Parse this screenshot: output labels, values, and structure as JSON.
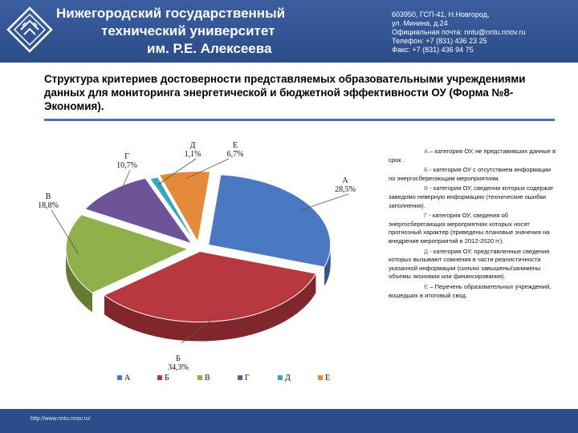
{
  "header": {
    "university": [
      "Нижегородский государственный",
      "технический университет",
      "им. Р.Е. Алексеева"
    ],
    "contacts": [
      "603950, ГСП-41, Н.Новгород,",
      "ул. Минина, д.24",
      "Официальная почта: nntu@nntu.nnov.ru",
      "Телефон: +7 (831) 436 23 25",
      "Факс: +7 (831) 436 94 75"
    ]
  },
  "title": "Структура критериев достоверности представляемых образовательными учреждениями данных для мониторинга энергетической и бюджетной эффективности ОУ (Форма №8-Экономия).",
  "chart_data": {
    "type": "pie",
    "categories": [
      "А",
      "Б",
      "В",
      "Г",
      "Д",
      "Е"
    ],
    "values": [
      28.5,
      34.3,
      18.8,
      10.7,
      1.1,
      6.7
    ],
    "value_labels": [
      "28,5%",
      "34,3%",
      "18,8%",
      "10,7%",
      "1,1%",
      "6,7%"
    ],
    "colors": [
      "#4b78c3",
      "#b8383f",
      "#8fb04a",
      "#6d5498",
      "#3aa5bd",
      "#e58a3a"
    ],
    "legend_position": "bottom",
    "style": "3d exploded"
  },
  "legend": [
    {
      "key": "А",
      "text": "– категория ОУ, не представивших данные в срок ."
    },
    {
      "key": "Б",
      "text": "- категория ОУ с отсутствием информации по энергосберегающим мероприятиям."
    },
    {
      "key": "В",
      "text": "- категория ОУ, сведения которых содержат заведомо неверную информацию (технические ошибки заполнения)."
    },
    {
      "key": "Г",
      "text": "- категория ОУ, сведения об энергосберегающих мероприятиях которых носят прогнозный характер (приведены плановые значения на внедрение мероприятий в 2012-2020 гг)."
    },
    {
      "key": "Д",
      "text": "- категория ОУ, представленные сведения которых вызывают сомнения в части реалистичности указанной информации (сильно завышены/занижены объемы экономии или финансирования)."
    },
    {
      "key": "Е",
      "text": "– Перечень образовательных учреждений, вошедших в итоговый свод."
    }
  ],
  "footer": {
    "url": "http://www.nntu.nnov.ru/"
  }
}
